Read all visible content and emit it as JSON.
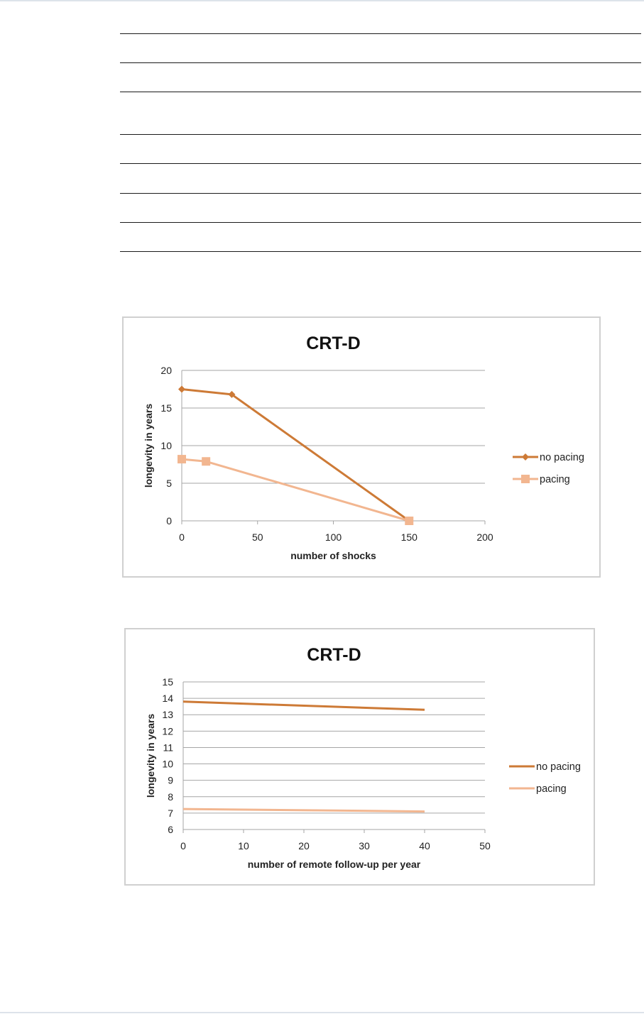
{
  "colors": {
    "no_pacing": "#cd7a36",
    "pacing": "#f2b690",
    "grid": "#a6a6a6",
    "frame": "#d0d0d0"
  },
  "chart_data": [
    {
      "type": "line",
      "title": "CRT-D",
      "xlabel": "number of shocks",
      "ylabel": "longevity in years",
      "xlim": [
        0,
        200
      ],
      "ylim": [
        0,
        20
      ],
      "xticks": [
        0,
        50,
        100,
        150,
        200
      ],
      "yticks": [
        0,
        5,
        10,
        15,
        20
      ],
      "grid": true,
      "legend": "right",
      "series": [
        {
          "name": "no pacing",
          "marker": "diamond",
          "points": [
            [
              0,
              17.5
            ],
            [
              33,
              16.8
            ],
            [
              150,
              0
            ]
          ]
        },
        {
          "name": "pacing",
          "marker": "square",
          "points": [
            [
              0,
              8.2
            ],
            [
              16,
              7.9
            ],
            [
              150,
              0
            ]
          ]
        }
      ]
    },
    {
      "type": "line",
      "title": "CRT-D",
      "xlabel": "number of remote follow-up per year",
      "ylabel": "longevity in years",
      "xlim": [
        0,
        50
      ],
      "ylim": [
        6,
        15
      ],
      "xticks": [
        0,
        10,
        20,
        30,
        40,
        50
      ],
      "yticks": [
        6,
        7,
        8,
        9,
        10,
        11,
        12,
        13,
        14,
        15
      ],
      "grid": true,
      "legend": "right",
      "series": [
        {
          "name": "no pacing",
          "marker": "none",
          "points": [
            [
              0,
              13.8
            ],
            [
              40,
              13.3
            ]
          ]
        },
        {
          "name": "pacing",
          "marker": "none",
          "points": [
            [
              0,
              7.25
            ],
            [
              40,
              7.1
            ]
          ]
        }
      ]
    }
  ]
}
